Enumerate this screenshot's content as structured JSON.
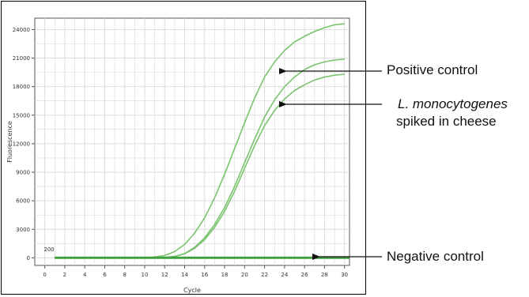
{
  "chart_data": {
    "type": "line",
    "xlabel": "Cycle",
    "ylabel": "Fluorescence",
    "xlim": [
      -1,
      30.5
    ],
    "ylim": [
      -800,
      25200
    ],
    "x_ticks": [
      "0",
      "2",
      "4",
      "6",
      "8",
      "10",
      "12",
      "14",
      "16",
      "18",
      "20",
      "22",
      "24",
      "26",
      "28",
      "30"
    ],
    "y_ticks": [
      "0",
      "3000",
      "6000",
      "9000",
      "12000",
      "15000",
      "18000",
      "21000",
      "24000"
    ],
    "threshold_label": "200",
    "threshold": 200,
    "grid": true,
    "series": [
      {
        "x": [
          1,
          4,
          8,
          10,
          11,
          12,
          13,
          14,
          15,
          16,
          17,
          18,
          19,
          20,
          21,
          22,
          23,
          24,
          25,
          26,
          27,
          28,
          29,
          30
        ],
        "y": [
          0,
          0,
          0,
          20,
          80,
          250,
          650,
          1400,
          2600,
          4200,
          6300,
          8800,
          11500,
          14200,
          16800,
          19000,
          20600,
          21800,
          22700,
          23300,
          23800,
          24200,
          24500,
          24600
        ]
      },
      {
        "x": [
          1,
          4,
          8,
          10,
          11,
          12,
          13,
          14,
          15,
          16,
          17,
          18,
          19,
          20,
          21,
          22,
          23,
          24,
          25,
          26,
          27,
          28,
          29,
          30
        ],
        "y": [
          0,
          0,
          0,
          0,
          10,
          40,
          150,
          450,
          1100,
          2100,
          3500,
          5300,
          7500,
          10000,
          12500,
          14800,
          16600,
          18000,
          19000,
          19800,
          20300,
          20600,
          20800,
          20900
        ]
      },
      {
        "x": [
          1,
          4,
          8,
          10,
          11,
          12,
          13,
          14,
          15,
          16,
          17,
          18,
          19,
          20,
          21,
          22,
          23,
          24,
          25,
          26,
          27,
          28,
          29,
          30
        ],
        "y": [
          0,
          0,
          0,
          0,
          10,
          40,
          140,
          420,
          1000,
          1900,
          3200,
          4900,
          7000,
          9400,
          11800,
          13900,
          15500,
          16700,
          17600,
          18200,
          18700,
          19000,
          19200,
          19300
        ]
      },
      {
        "x": [
          1,
          30.5
        ],
        "y": [
          30,
          30
        ]
      },
      {
        "x": [
          1,
          30.5
        ],
        "y": [
          -30,
          -30
        ]
      }
    ],
    "annotations": [
      {
        "text": "Positive control",
        "italic": false,
        "points_to_x": 24,
        "points_to_y": 20500
      },
      {
        "text": "L. monocytogenes",
        "italic": true,
        "points_to_x": 24,
        "points_to_y": 17300
      },
      {
        "text": "spiked in cheese",
        "italic": false
      },
      {
        "text": "Negative control",
        "italic": false,
        "points_to_x": 26,
        "points_to_y": 0
      }
    ],
    "colors": {
      "amplification": "#79c36d",
      "negative": "#3f9e3f",
      "grid": "#d8d8d8",
      "axis": "#555555",
      "arrow": "#111111"
    }
  }
}
